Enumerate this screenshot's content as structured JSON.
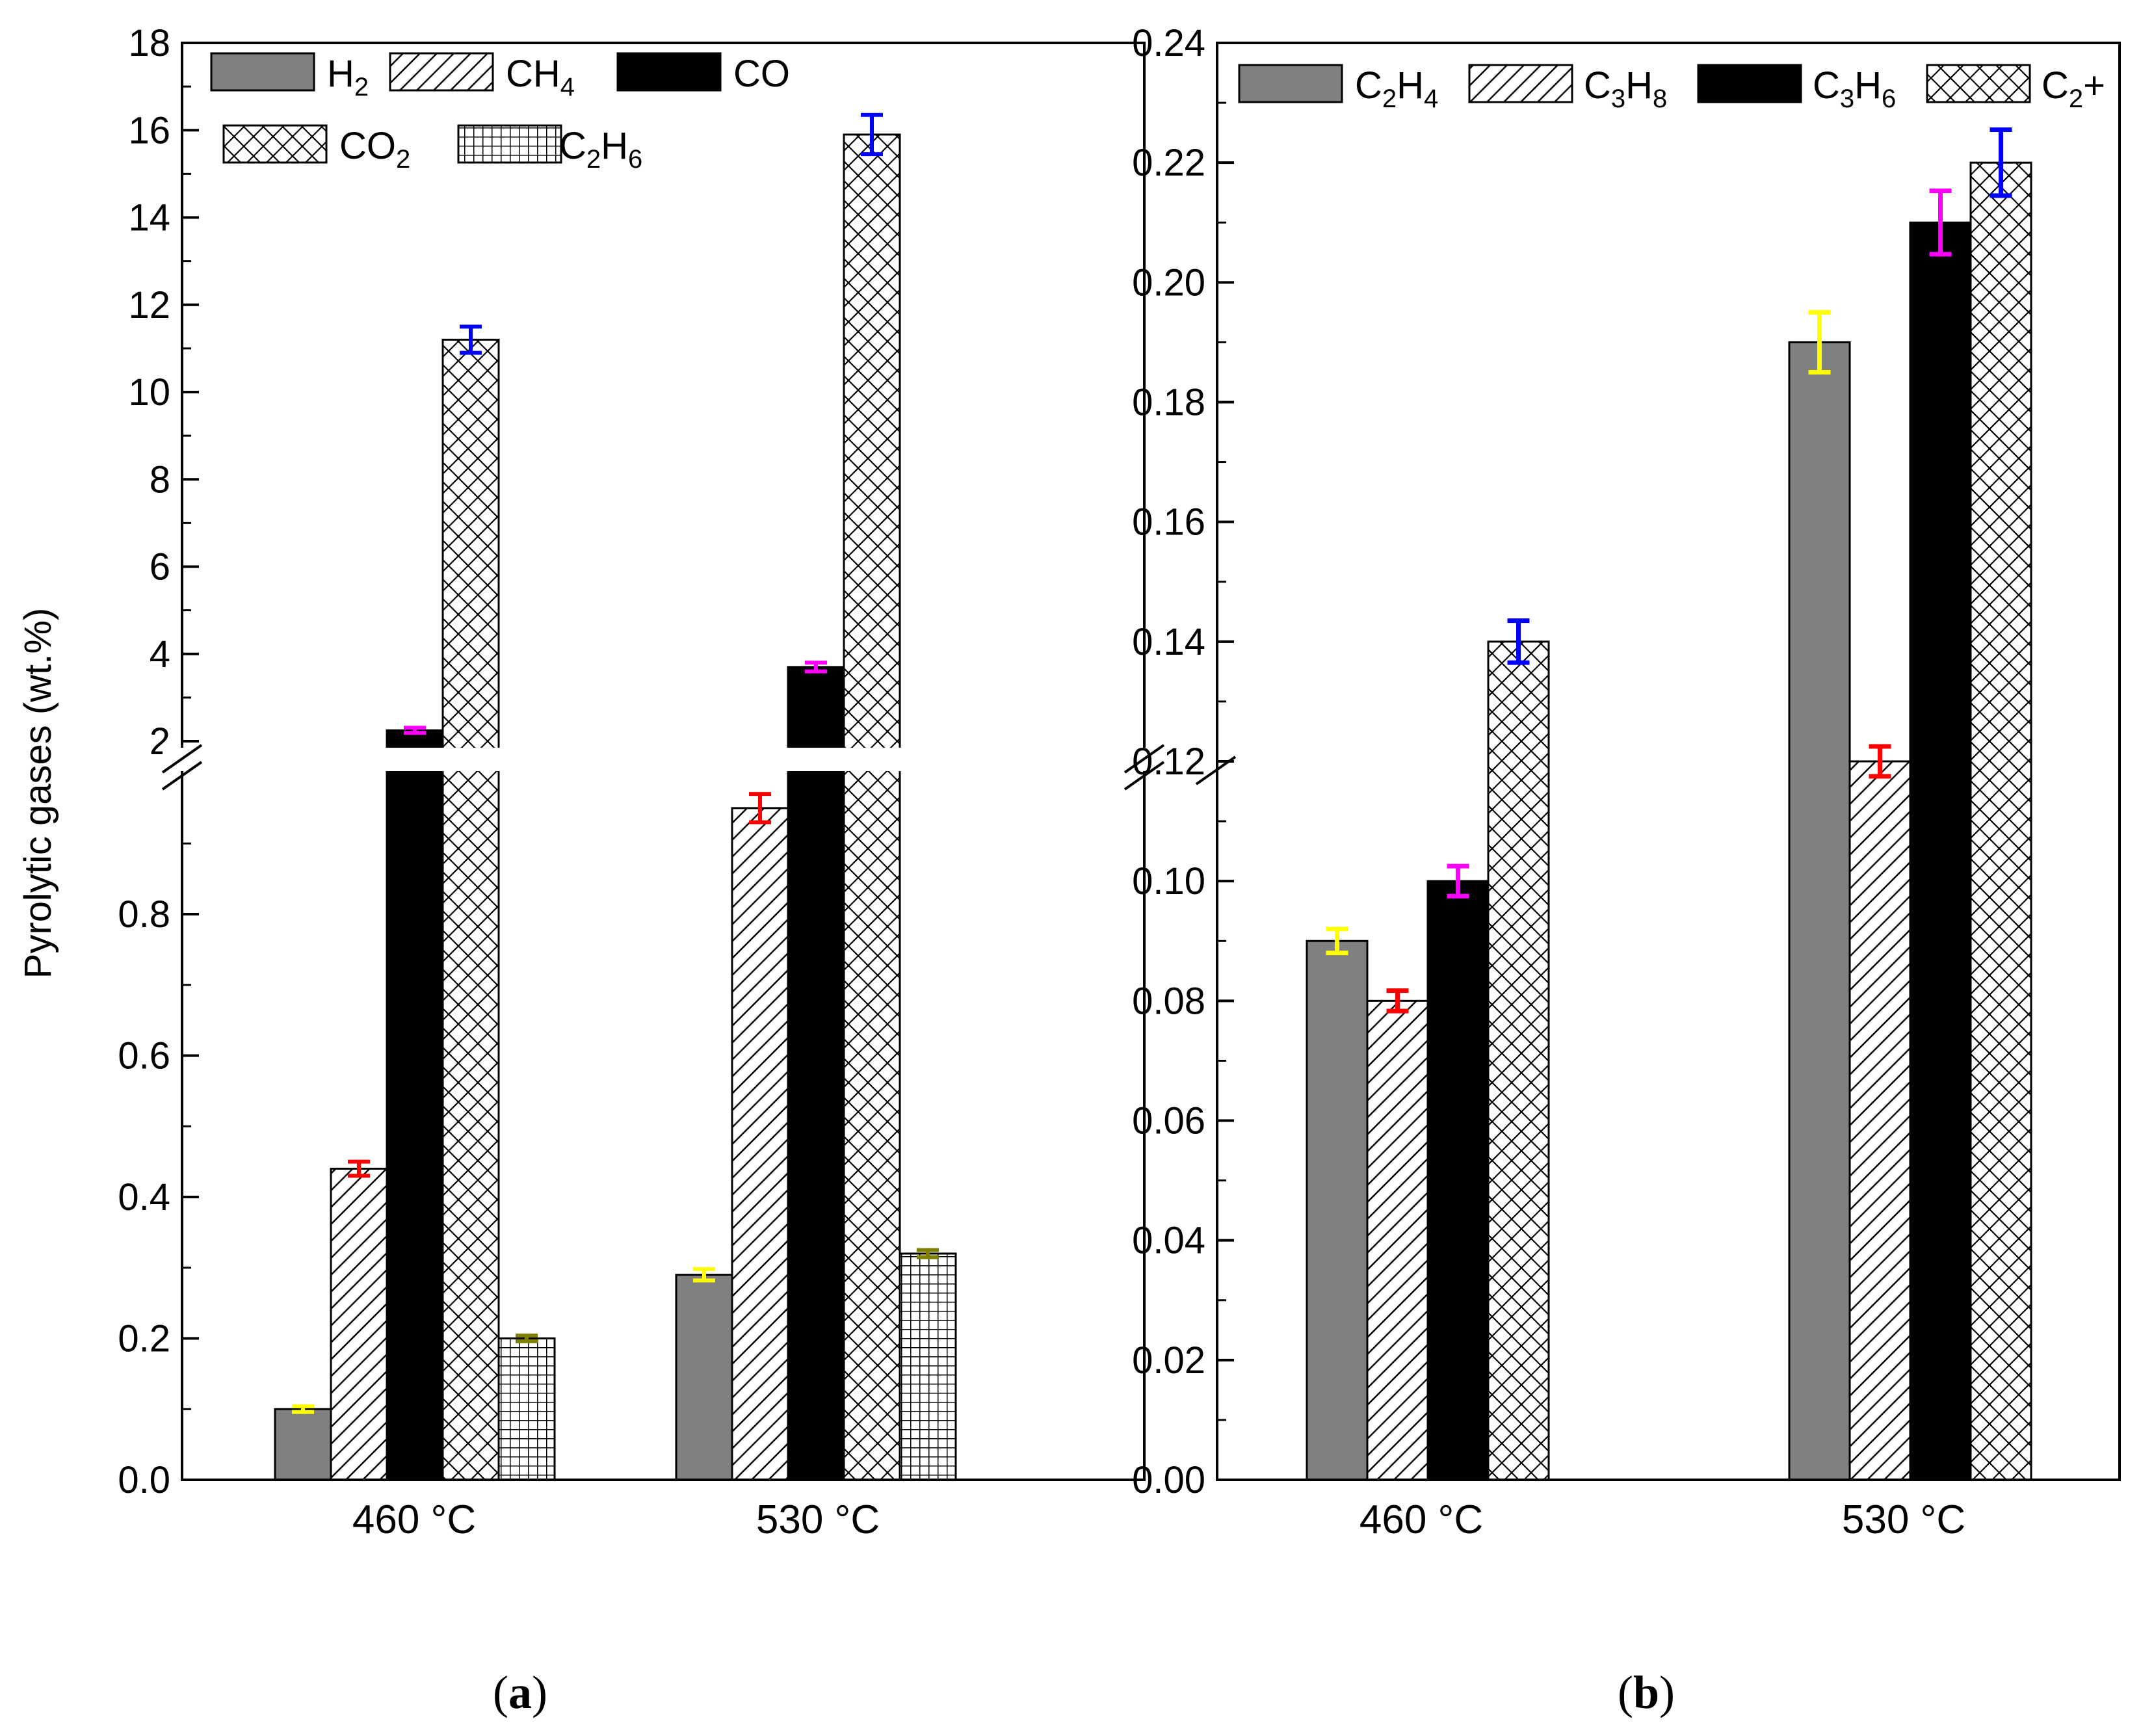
{
  "figure": {
    "panel_labels": [
      {
        "open": "(",
        "letter": "a",
        "close": ")"
      },
      {
        "open": "(",
        "letter": "b",
        "close": ")"
      }
    ],
    "colors": {
      "bar_gray": "#808080",
      "bar_black": "#000000",
      "err_yellow": "#ffff00",
      "err_red": "#ff0000",
      "err_magenta": "#ff00ff",
      "err_blue": "#0000ff",
      "err_olive": "#808000"
    }
  },
  "chart_data": [
    {
      "type": "bar",
      "panel": "a",
      "ylabel": "Pyrolytic gases (wt.%)",
      "categories": [
        "460 °C",
        "530 °C"
      ],
      "y_axis_break": {
        "lower": [
          0,
          1.0
        ],
        "upper": [
          1.8,
          18
        ]
      },
      "yticks_lower": [
        "0.0",
        "0.2",
        "0.4",
        "0.6",
        "0.8"
      ],
      "yticks_upper": [
        "2",
        "4",
        "6",
        "8",
        "10",
        "12",
        "14",
        "16",
        "18"
      ],
      "yticks_lower_values": [
        0,
        0.2,
        0.4,
        0.6,
        0.8
      ],
      "yticks_upper_values": [
        2,
        4,
        6,
        8,
        10,
        12,
        14,
        16,
        18
      ],
      "series": [
        {
          "name": "H2",
          "label": {
            "base": "H",
            "sub": "2"
          },
          "pattern": "gray",
          "values": [
            0.1,
            0.29
          ],
          "errors": [
            0.004,
            0.008
          ],
          "err_color": "yellow"
        },
        {
          "name": "CH4",
          "label": {
            "base": "CH",
            "sub": "4"
          },
          "pattern": "diagonal",
          "values": [
            0.44,
            0.95
          ],
          "errors": [
            0.01,
            0.02
          ],
          "err_color": "red"
        },
        {
          "name": "CO",
          "label": {
            "base": "CO",
            "sub": ""
          },
          "pattern": "black",
          "values": [
            2.25,
            3.7
          ],
          "errors": [
            0.06,
            0.1
          ],
          "err_color": "magenta"
        },
        {
          "name": "CO2",
          "label": {
            "base": "CO",
            "sub": "2"
          },
          "pattern": "crosshatch",
          "values": [
            11.2,
            15.9
          ],
          "errors": [
            0.3,
            0.45
          ],
          "err_color": "blue"
        },
        {
          "name": "C2H6",
          "label": {
            "base": "C",
            "sub": "2",
            "base2": "H",
            "sub2": "6"
          },
          "pattern": "grid",
          "values": [
            0.2,
            0.32
          ],
          "errors": [
            0.004,
            0.005
          ],
          "err_color": "olive"
        }
      ]
    },
    {
      "type": "bar",
      "panel": "b",
      "ylabel": "",
      "categories": [
        "460 °C",
        "530 °C"
      ],
      "ylim": [
        0,
        0.24
      ],
      "yticks": [
        "0.00",
        "0.02",
        "0.04",
        "0.06",
        "0.08",
        "0.10",
        "0.12",
        "0.14",
        "0.16",
        "0.18",
        "0.20",
        "0.22",
        "0.24"
      ],
      "ytick_values": [
        0,
        0.02,
        0.04,
        0.06,
        0.08,
        0.1,
        0.12,
        0.14,
        0.16,
        0.18,
        0.2,
        0.22,
        0.24
      ],
      "series": [
        {
          "name": "C2H4",
          "label": {
            "base": "C",
            "sub": "2",
            "base2": "H",
            "sub2": "4"
          },
          "pattern": "gray",
          "values": [
            0.09,
            0.19
          ],
          "errors": [
            0.002,
            0.005
          ],
          "err_color": "yellow"
        },
        {
          "name": "C3H8",
          "label": {
            "base": "C",
            "sub": "3",
            "base2": "H",
            "sub2": "8"
          },
          "pattern": "diagonal",
          "values": [
            0.08,
            0.12
          ],
          "errors": [
            0.0017,
            0.0025
          ],
          "err_color": "red"
        },
        {
          "name": "C3H6",
          "label": {
            "base": "C",
            "sub": "3",
            "base2": "H",
            "sub2": "6"
          },
          "pattern": "black",
          "values": [
            0.1,
            0.21
          ],
          "errors": [
            0.0025,
            0.0053
          ],
          "err_color": "magenta"
        },
        {
          "name": "C2+",
          "label": {
            "base": "C",
            "sub": "2",
            "base2": "+",
            "sub2": ""
          },
          "pattern": "crosshatch",
          "values": [
            0.14,
            0.22
          ],
          "errors": [
            0.0035,
            0.0055
          ],
          "err_color": "blue"
        }
      ]
    }
  ]
}
